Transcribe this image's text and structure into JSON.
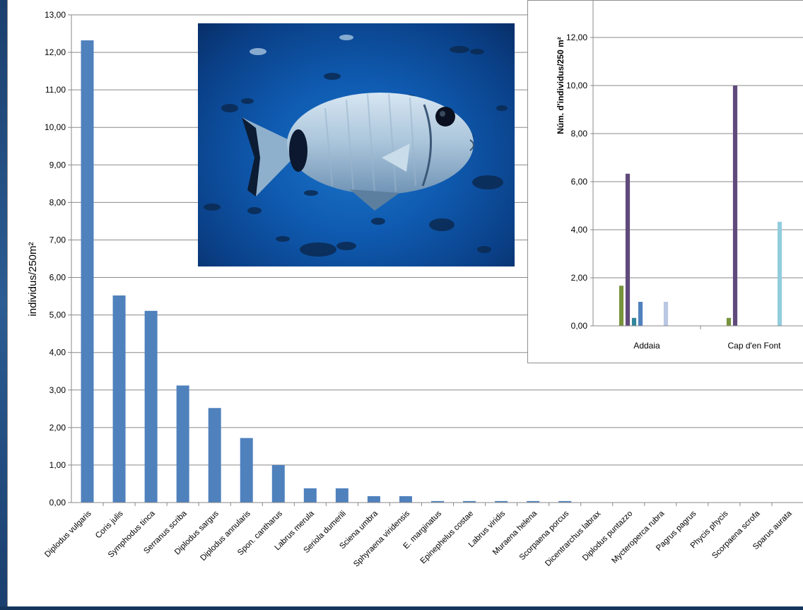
{
  "chart_data": [
    {
      "type": "bar",
      "ylabel": "individus/250m²",
      "ylim": [
        0,
        13
      ],
      "ytick_labels": [
        "0,00",
        "1,00",
        "2,00",
        "3,00",
        "4,00",
        "5,00",
        "6,00",
        "7,00",
        "8,00",
        "9,00",
        "10,00",
        "11,00",
        "12,00",
        "13,00"
      ],
      "categories": [
        "Diplodus vulgaris",
        "Coris julis",
        "Symphodus tinca",
        "Serranus scriba",
        "Diplodus sargus",
        "Diplodus annularis",
        "Spon. cantharus",
        "Labrus merula",
        "Seriola dumerili",
        "Sciena umbra",
        "Sphyraena viridensis",
        "E. marginatus",
        "Epinephelus costae",
        "Labrus viridis",
        "Muraena helena",
        "Scorpaena porcus",
        "Dicentrarchus labrax",
        "Diplodus puntazzo",
        "Mycteroperca rubra",
        "Pagrus pagrus",
        "Phycis phycis",
        "Scorpaena scrofa",
        "Sparus aurata"
      ],
      "values": [
        12.32,
        5.52,
        5.11,
        3.12,
        2.52,
        1.72,
        1.0,
        0.38,
        0.38,
        0.17,
        0.17,
        0.04,
        0.04,
        0.04,
        0.04,
        0.04,
        0,
        0,
        0,
        0,
        0,
        0,
        0
      ],
      "color": "#4f81bd",
      "grid": true
    },
    {
      "type": "bar",
      "ylabel": "Núm. d'individus/250 m²",
      "ylim": [
        0,
        14
      ],
      "ytick_labels": [
        "0,00",
        "2,00",
        "4,00",
        "6,00",
        "8,00",
        "10,00",
        "12,00"
      ],
      "categories": [
        "Addaia",
        "Cap d'en Font"
      ],
      "series": [
        {
          "color": "#77933c",
          "values": [
            1.67,
            0.33
          ]
        },
        {
          "color": "#604a7b",
          "values": [
            6.33,
            10.0
          ]
        },
        {
          "color": "#31859c",
          "values": [
            0.33,
            0.0
          ]
        },
        {
          "color": "#4f81bd",
          "values": [
            1.0,
            0.0
          ]
        },
        {
          "color": "#c00000",
          "values": [
            0.0,
            0.0
          ]
        },
        {
          "color": "#e46c0a",
          "values": [
            0.0,
            0.0
          ]
        },
        {
          "color": "#bfbfbf",
          "values": [
            0.0,
            0.0
          ]
        },
        {
          "color": "#b9c7e3",
          "values": [
            1.0,
            0.0
          ]
        },
        {
          "color": "#93cddd",
          "values": [
            0.0,
            4.33
          ]
        }
      ],
      "grid": true
    }
  ]
}
